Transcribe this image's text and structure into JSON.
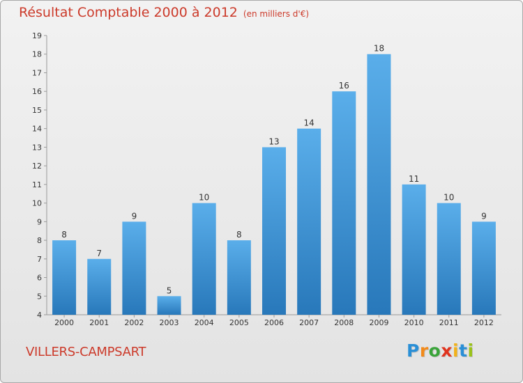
{
  "title": "Résultat Comptable 2000 à 2012",
  "subtitle": "(en milliers d'€)",
  "municipality": "VILLERS-CAMPSART",
  "brand": {
    "letters": [
      "P",
      "r",
      "o",
      "x",
      "i",
      "t",
      "i"
    ],
    "colors": [
      "#2a8fd6",
      "#f28a1a",
      "#3aa43a",
      "#e0331e",
      "#f2b21a",
      "#2a8fd6",
      "#9ac21a"
    ],
    "name": "Proxiti"
  },
  "colors": {
    "bar_top": "#5aaeea",
    "bar_bottom": "#2878ba",
    "title": "#cc3a2a"
  },
  "chart_data": {
    "type": "bar",
    "title": "Résultat Comptable 2000 à 2012",
    "subtitle": "(en milliers d'€)",
    "xlabel": "",
    "ylabel": "",
    "categories": [
      "2000",
      "2001",
      "2002",
      "2003",
      "2004",
      "2005",
      "2006",
      "2007",
      "2008",
      "2009",
      "2010",
      "2011",
      "2012"
    ],
    "values": [
      8,
      7,
      9,
      5,
      10,
      8,
      13,
      14,
      16,
      18,
      11,
      10,
      9
    ],
    "ylim": [
      4,
      19
    ],
    "yticks": [
      4,
      5,
      6,
      7,
      8,
      9,
      10,
      11,
      12,
      13,
      14,
      15,
      16,
      17,
      18,
      19
    ],
    "grid": false,
    "legend": "none"
  }
}
